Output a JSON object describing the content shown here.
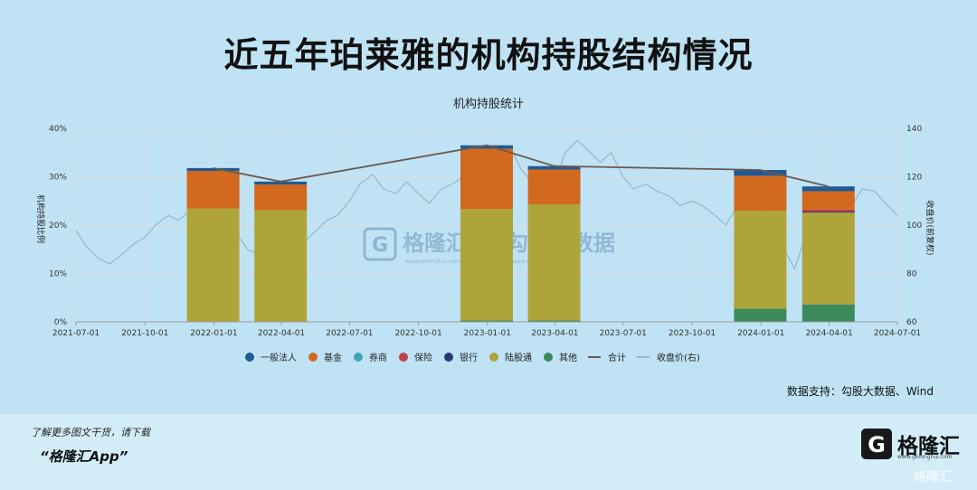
{
  "title": "近五年珀莱雅的机构持股结构情况",
  "chart_data": {
    "type": "bar",
    "title": "机构持股统计",
    "ylabel_left": "机构持股比例",
    "ylabel_right": "收盘价(前复权)",
    "y_left_range": [
      0,
      40
    ],
    "y_left_ticks": [
      "0%",
      "10%",
      "20%",
      "30%",
      "40%"
    ],
    "y_right_range": [
      60,
      140
    ],
    "y_right_ticks": [
      "60",
      "80",
      "100",
      "120",
      "140"
    ],
    "x_ticks": [
      "2021-07-01",
      "2021-10-01",
      "2022-01-01",
      "2022-04-01",
      "2022-07-01",
      "2022-10-01",
      "2023-01-01",
      "2023-04-01",
      "2023-07-01",
      "2023-10-01",
      "2024-01-01",
      "2024-04-01",
      "2024-07-01"
    ],
    "grid": true,
    "legend_position": "bottom",
    "categories": [
      "2021-12-31",
      "2022-03-31",
      "2022-12-31",
      "2023-03-31",
      "2023-12-31",
      "2024-03-31"
    ],
    "series": [
      {
        "name": "一般法人",
        "color": "#1f5a94",
        "values": [
          0.6,
          0.6,
          0.7,
          0.7,
          1.2,
          1.0
        ]
      },
      {
        "name": "基金",
        "color": "#d2691e",
        "values": [
          7.8,
          5.3,
          12.5,
          7.2,
          7.2,
          3.8
        ]
      },
      {
        "name": "券商",
        "color": "#3fa7b5",
        "values": [
          0.0,
          0.0,
          0.0,
          0.0,
          0.0,
          0.0
        ]
      },
      {
        "name": "保险",
        "color": "#c0404a",
        "values": [
          0.0,
          0.0,
          0.0,
          0.0,
          0.0,
          0.4
        ]
      },
      {
        "name": "银行",
        "color": "#243b7a",
        "values": [
          0.0,
          0.0,
          0.0,
          0.0,
          0.0,
          0.2
        ]
      },
      {
        "name": "陆股通",
        "color": "#aea43a",
        "values": [
          23.4,
          23.1,
          23.0,
          24.0,
          20.3,
          19.0
        ]
      },
      {
        "name": "其他",
        "color": "#3b8a5a",
        "values": [
          0.0,
          0.0,
          0.3,
          0.3,
          2.7,
          3.6
        ]
      }
    ],
    "total_line": {
      "name": "合计",
      "color": "#6b5a50",
      "values": [
        31.8,
        29.0,
        36.5,
        32.2,
        31.4,
        28.0
      ]
    },
    "price_line": {
      "name": "收盘价(右)",
      "color": "#9ab6c8",
      "x": [
        "2021-07-01",
        "2021-07-15",
        "2021-08-01",
        "2021-08-15",
        "2021-09-01",
        "2021-09-15",
        "2021-10-01",
        "2021-10-15",
        "2021-11-01",
        "2021-11-15",
        "2021-12-01",
        "2021-12-15",
        "2022-01-01",
        "2022-01-15",
        "2022-02-01",
        "2022-02-15",
        "2022-03-01",
        "2022-03-15",
        "2022-04-01",
        "2022-04-15",
        "2022-05-01",
        "2022-05-15",
        "2022-06-01",
        "2022-06-15",
        "2022-07-01",
        "2022-07-15",
        "2022-08-01",
        "2022-08-15",
        "2022-09-01",
        "2022-09-15",
        "2022-10-01",
        "2022-10-15",
        "2022-11-01",
        "2022-11-15",
        "2022-12-01",
        "2022-12-15",
        "2023-01-01",
        "2023-01-15",
        "2023-02-01",
        "2023-02-15",
        "2023-03-01",
        "2023-03-15",
        "2023-04-01",
        "2023-04-15",
        "2023-05-01",
        "2023-05-15",
        "2023-06-01",
        "2023-06-15",
        "2023-07-01",
        "2023-07-15",
        "2023-08-01",
        "2023-08-15",
        "2023-09-01",
        "2023-09-15",
        "2023-10-01",
        "2023-10-15",
        "2023-11-01",
        "2023-11-15",
        "2023-12-01",
        "2023-12-15",
        "2024-01-01",
        "2024-01-15",
        "2024-02-01",
        "2024-02-15",
        "2024-03-01",
        "2024-03-15",
        "2024-04-01",
        "2024-04-15",
        "2024-05-01",
        "2024-05-15",
        "2024-06-01",
        "2024-06-15",
        "2024-07-01"
      ],
      "values": [
        98,
        91,
        86,
        84,
        88,
        92,
        95,
        100,
        104,
        102,
        106,
        112,
        109,
        104,
        96,
        90,
        88,
        94,
        90,
        84,
        93,
        97,
        102,
        104,
        110,
        117,
        121,
        115,
        113,
        118,
        113,
        109,
        115,
        117,
        120,
        123,
        130,
        127,
        132,
        123,
        118,
        123,
        118,
        130,
        135,
        131,
        126,
        130,
        120,
        115,
        117,
        114,
        112,
        108,
        110,
        108,
        104,
        100,
        108,
        115,
        109,
        102,
        90,
        82,
        96,
        108,
        110,
        104,
        108,
        115,
        114,
        109,
        104
      ]
    }
  },
  "watermark": {
    "text": "格隆汇",
    "divider": "|",
    "text2": "勾股大数据",
    "url1": "www.gelonghui.com",
    "url2": "www.gogudata.com"
  },
  "source": "数据支持：勾股大数据、Wind",
  "footer": {
    "note": "了解更多图文干货，请下载",
    "app": "“格隆汇App”"
  },
  "logo": {
    "mark": "G",
    "name": "格隆汇",
    "url": "www.gelonghui.com",
    "corner": "格隆汇"
  }
}
